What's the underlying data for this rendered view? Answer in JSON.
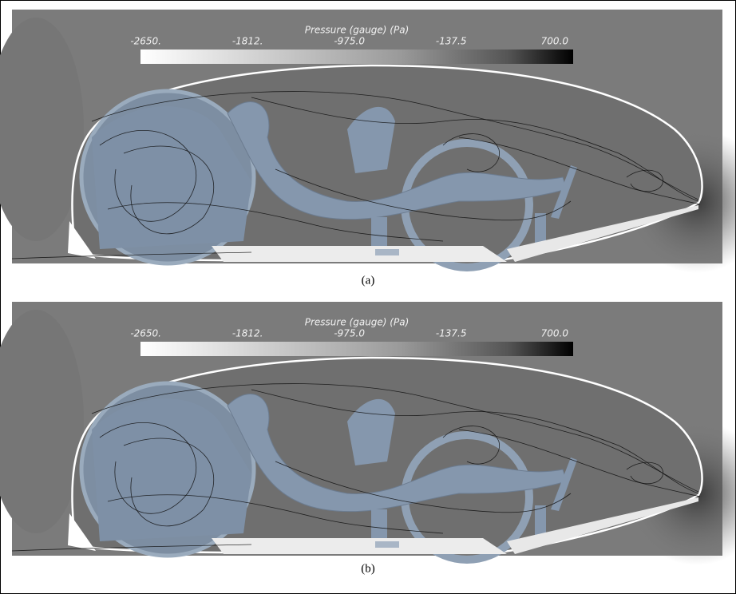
{
  "panels": [
    {
      "colorbar": {
        "title": "Pressure (gauge) (Pa)",
        "labels": [
          "-2650.",
          "-1812.",
          "-975.0",
          "-137.5",
          "700.0"
        ]
      },
      "caption": "(a)"
    },
    {
      "colorbar": {
        "title": "Pressure (gauge) (Pa)",
        "labels": [
          "-2650.",
          "-1812.",
          "-975.0",
          "-137.5",
          "700.0"
        ]
      },
      "caption": "(b)"
    }
  ]
}
